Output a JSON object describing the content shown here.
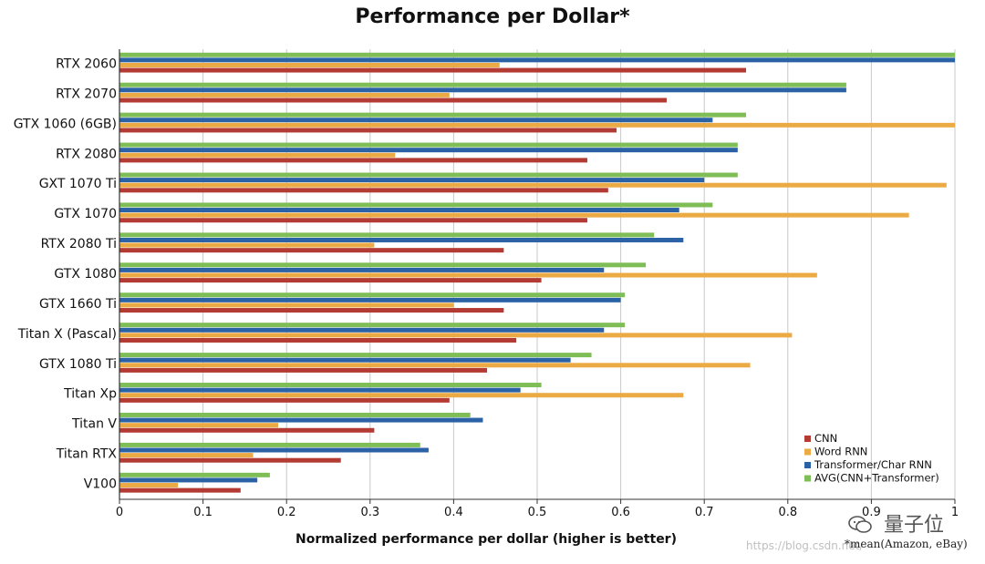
{
  "chart_data": {
    "type": "bar",
    "orientation": "horizontal",
    "title": "Performance per Dollar*",
    "xlabel": "Normalized performance per dollar (higher is better)",
    "ylabel": "",
    "xlim": [
      0,
      1
    ],
    "x_ticks": [
      "0",
      "0.1",
      "0.2",
      "0.3",
      "0.4",
      "0.5",
      "0.6",
      "0.7",
      "0.8",
      "0.9",
      "1"
    ],
    "grid": "vertical",
    "legend_position": "bottom-right",
    "categories": [
      "RTX 2060",
      "RTX 2070",
      "GTX 1060 (6GB)",
      "RTX 2080",
      "GXT 1070 Ti",
      "GTX 1070",
      "RTX 2080 Ti",
      "GTX 1080",
      "GTX 1660 Ti",
      "Titan X (Pascal)",
      "GTX 1080 Ti",
      "Titan Xp",
      "Titan V",
      "Titan RTX",
      "V100"
    ],
    "series": [
      {
        "name": "AVG(CNN+Transformer)",
        "color": "#7fbd56",
        "values": [
          1.0,
          0.87,
          0.75,
          0.74,
          0.74,
          0.71,
          0.64,
          0.63,
          0.605,
          0.605,
          0.565,
          0.505,
          0.42,
          0.36,
          0.18
        ]
      },
      {
        "name": "Transformer/Char RNN",
        "color": "#2b62a6",
        "values": [
          1.0,
          0.87,
          0.71,
          0.74,
          0.7,
          0.67,
          0.675,
          0.58,
          0.6,
          0.58,
          0.54,
          0.48,
          0.435,
          0.37,
          0.165
        ]
      },
      {
        "name": "Word RNN",
        "color": "#ecaa45",
        "values": [
          0.455,
          0.395,
          1.0,
          0.33,
          0.99,
          0.945,
          0.305,
          0.835,
          0.4,
          0.805,
          0.755,
          0.675,
          0.19,
          0.16,
          0.07
        ]
      },
      {
        "name": "CNN",
        "color": "#b43b33",
        "values": [
          0.75,
          0.655,
          0.595,
          0.56,
          0.585,
          0.56,
          0.46,
          0.505,
          0.46,
          0.475,
          0.44,
          0.395,
          0.305,
          0.265,
          0.145
        ]
      }
    ],
    "legend_order": [
      "CNN",
      "Word RNN",
      "Transformer/Char RNN",
      "AVG(CNN+Transformer)"
    ],
    "footnote": "*mean(Amazon, eBay)"
  },
  "watermark": {
    "url_text": "https://blog.csdn.net/",
    "brand_text": "量子位"
  }
}
